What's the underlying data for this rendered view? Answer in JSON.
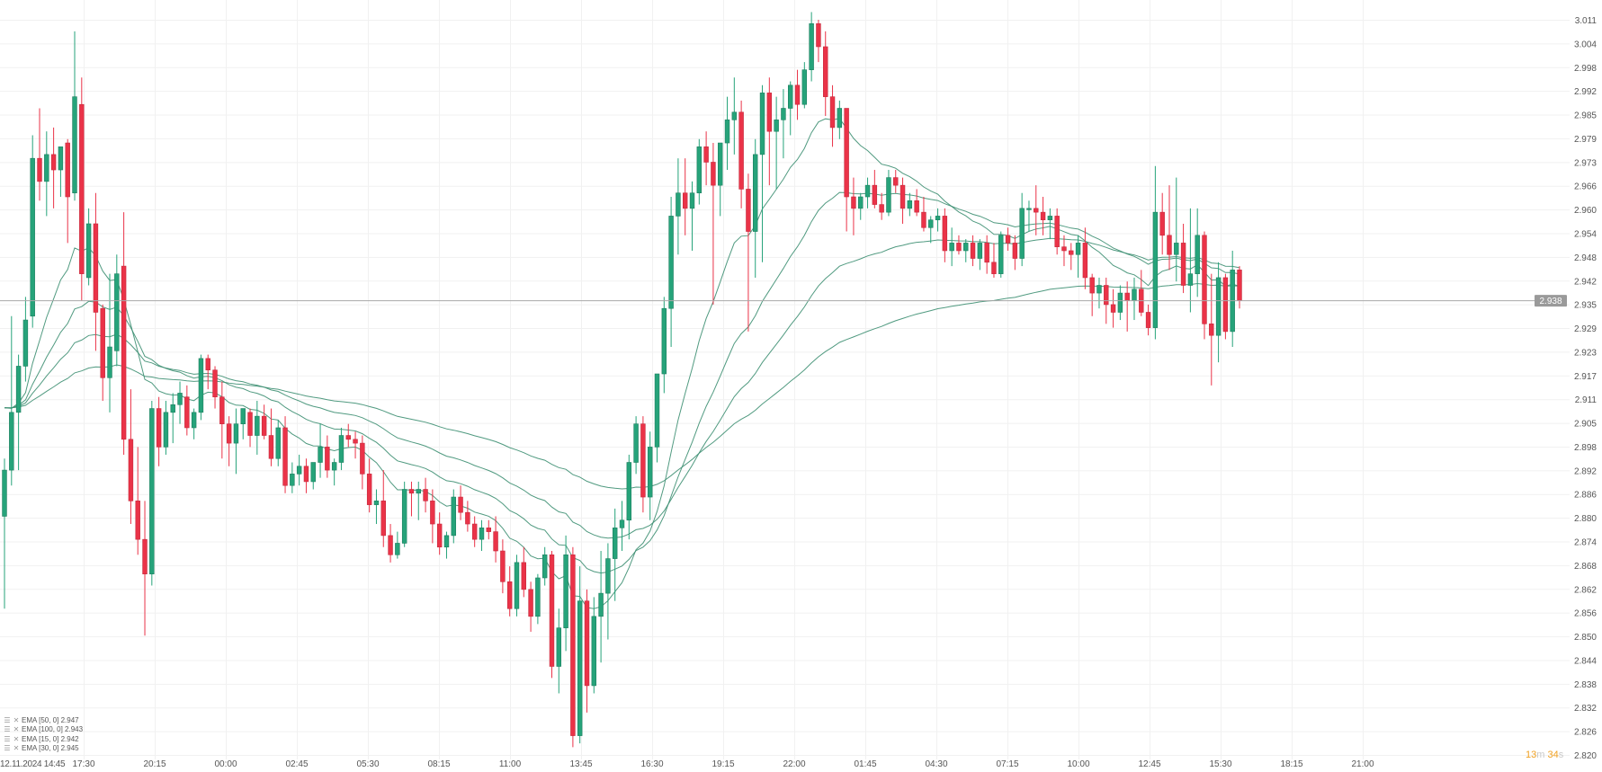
{
  "chart_data": {
    "type": "candlestick",
    "title": "",
    "xlabel": "",
    "ylabel": "",
    "ylim": [
      2.82,
      3.011
    ],
    "grid": true,
    "y_ticks": [
      "3.011",
      "3.004",
      "2.998",
      "2.992",
      "2.985",
      "2.979",
      "2.973",
      "2.966",
      "2.960",
      "2.954",
      "2.948",
      "2.942",
      "2.935",
      "2.929",
      "2.923",
      "2.917",
      "2.911",
      "2.905",
      "2.898",
      "2.892",
      "2.886",
      "2.880",
      "2.874",
      "2.868",
      "2.862",
      "2.856",
      "2.850",
      "2.844",
      "2.838",
      "2.832",
      "2.826",
      "2.820"
    ],
    "x_ticks": [
      "12.11.2024  14:45",
      "17:30",
      "20:15",
      "00:00",
      "02:45",
      "05:30",
      "08:15",
      "11:00",
      "13:45",
      "16:30",
      "19:15",
      "22:00",
      "01:45",
      "04:30",
      "07:15",
      "10:00",
      "12:45",
      "15:30",
      "18:15",
      "21:00"
    ],
    "current_price": 2.938,
    "current_price_label": "2.938",
    "candle_interval": "15m",
    "colors": {
      "up": "#26a37a",
      "down": "#ea3348",
      "ema": "#3d8f72",
      "price_line": "#a8a8a8"
    },
    "legend": [
      {
        "label": "EMA [50, 0] 2.947",
        "period": 50
      },
      {
        "label": "EMA [100, 0] 2.943",
        "period": 100
      },
      {
        "label": "EMA [15, 0] 2.942",
        "period": 15
      },
      {
        "label": "EMA [30, 0] 2.945",
        "period": 30
      }
    ],
    "ohlc": [
      [
        2.882,
        2.897,
        2.858,
        2.894
      ],
      [
        2.894,
        2.934,
        2.89,
        2.909
      ],
      [
        2.909,
        2.924,
        2.894,
        2.921
      ],
      [
        2.921,
        2.939,
        2.917,
        2.933
      ],
      [
        2.934,
        2.981,
        2.931,
        2.975
      ],
      [
        2.975,
        2.988,
        2.964,
        2.969
      ],
      [
        2.969,
        2.982,
        2.96,
        2.976
      ],
      [
        2.976,
        2.983,
        2.962,
        2.972
      ],
      [
        2.972,
        2.978,
        2.965,
        2.978
      ],
      [
        2.979,
        2.98,
        2.953,
        2.965
      ],
      [
        2.966,
        3.008,
        2.964,
        2.991
      ],
      [
        2.989,
        2.996,
        2.938,
        2.945
      ],
      [
        2.944,
        2.962,
        2.942,
        2.958
      ],
      [
        2.958,
        2.966,
        2.925,
        2.935
      ],
      [
        2.936,
        2.937,
        2.912,
        2.918
      ],
      [
        2.918,
        2.945,
        2.909,
        2.926
      ],
      [
        2.925,
        2.95,
        2.921,
        2.945
      ],
      [
        2.947,
        2.961,
        2.898,
        2.902
      ],
      [
        2.902,
        2.915,
        2.88,
        2.886
      ],
      [
        2.886,
        2.9,
        2.872,
        2.876
      ],
      [
        2.876,
        2.886,
        2.851,
        2.867
      ],
      [
        2.867,
        2.912,
        2.864,
        2.91
      ],
      [
        2.91,
        2.913,
        2.895,
        2.9
      ],
      [
        2.9,
        2.912,
        2.898,
        2.909
      ],
      [
        2.909,
        2.914,
        2.901,
        2.911
      ],
      [
        2.911,
        2.917,
        2.906,
        2.914
      ],
      [
        2.913,
        2.916,
        2.903,
        2.905
      ],
      [
        2.905,
        2.91,
        2.902,
        2.909
      ],
      [
        2.909,
        2.924,
        2.907,
        2.923
      ],
      [
        2.923,
        2.924,
        2.915,
        2.92
      ],
      [
        2.92,
        2.921,
        2.91,
        2.913
      ],
      [
        2.913,
        2.917,
        2.897,
        2.906
      ],
      [
        2.906,
        2.908,
        2.895,
        2.901
      ],
      [
        2.901,
        2.91,
        2.893,
        2.906
      ],
      [
        2.906,
        2.91,
        2.902,
        2.91
      ],
      [
        2.909,
        2.91,
        2.9,
        2.903
      ],
      [
        2.903,
        2.912,
        2.898,
        2.908
      ],
      [
        2.908,
        2.911,
        2.902,
        2.903
      ],
      [
        2.903,
        2.91,
        2.895,
        2.897
      ],
      [
        2.897,
        2.907,
        2.895,
        2.905
      ],
      [
        2.905,
        2.908,
        2.888,
        2.89
      ],
      [
        2.89,
        2.896,
        2.888,
        2.893
      ],
      [
        2.893,
        2.898,
        2.89,
        2.895
      ],
      [
        2.895,
        2.897,
        2.888,
        2.891
      ],
      [
        2.891,
        2.896,
        2.889,
        2.896
      ],
      [
        2.896,
        2.906,
        2.892,
        2.9
      ],
      [
        2.9,
        2.903,
        2.892,
        2.894
      ],
      [
        2.894,
        2.897,
        2.89,
        2.896
      ],
      [
        2.896,
        2.905,
        2.894,
        2.903
      ],
      [
        2.903,
        2.906,
        2.9,
        2.902
      ],
      [
        2.902,
        2.904,
        2.897,
        2.901
      ],
      [
        2.901,
        2.903,
        2.889,
        2.893
      ],
      [
        2.893,
        2.897,
        2.883,
        2.885
      ],
      [
        2.885,
        2.889,
        2.88,
        2.886
      ],
      [
        2.886,
        2.894,
        2.874,
        2.877
      ],
      [
        2.877,
        2.88,
        2.87,
        2.872
      ],
      [
        2.872,
        2.878,
        2.871,
        2.875
      ],
      [
        2.875,
        2.891,
        2.874,
        2.889
      ],
      [
        2.889,
        2.891,
        2.882,
        2.888
      ],
      [
        2.888,
        2.891,
        2.881,
        2.889
      ],
      [
        2.889,
        2.892,
        2.883,
        2.886
      ],
      [
        2.886,
        2.889,
        2.875,
        2.88
      ],
      [
        2.88,
        2.883,
        2.872,
        2.874
      ],
      [
        2.874,
        2.878,
        2.871,
        2.877
      ],
      [
        2.877,
        2.889,
        2.875,
        2.887
      ],
      [
        2.887,
        2.89,
        2.881,
        2.883
      ],
      [
        2.883,
        2.886,
        2.878,
        2.88
      ],
      [
        2.88,
        2.882,
        2.874,
        2.876
      ],
      [
        2.876,
        2.881,
        2.873,
        2.879
      ],
      [
        2.879,
        2.881,
        2.876,
        2.878
      ],
      [
        2.878,
        2.882,
        2.87,
        2.873
      ],
      [
        2.873,
        2.876,
        2.862,
        2.865
      ],
      [
        2.865,
        2.869,
        2.856,
        2.858
      ],
      [
        2.858,
        2.872,
        2.856,
        2.87
      ],
      [
        2.87,
        2.874,
        2.861,
        2.863
      ],
      [
        2.863,
        2.865,
        2.852,
        2.856
      ],
      [
        2.856,
        2.867,
        2.854,
        2.866
      ],
      [
        2.866,
        2.874,
        2.864,
        2.872
      ],
      [
        2.872,
        2.873,
        2.84,
        2.843
      ],
      [
        2.843,
        2.858,
        2.836,
        2.853
      ],
      [
        2.853,
        2.877,
        2.847,
        2.872
      ],
      [
        2.872,
        2.874,
        2.822,
        2.825
      ],
      [
        2.825,
        2.869,
        2.823,
        2.86
      ],
      [
        2.86,
        2.863,
        2.831,
        2.838
      ],
      [
        2.838,
        2.861,
        2.836,
        2.856
      ],
      [
        2.856,
        2.873,
        2.844,
        2.862
      ],
      [
        2.862,
        2.875,
        2.85,
        2.871
      ],
      [
        2.871,
        2.884,
        2.86,
        2.879
      ],
      [
        2.879,
        2.886,
        2.873,
        2.881
      ],
      [
        2.881,
        2.898,
        2.876,
        2.896
      ],
      [
        2.896,
        2.908,
        2.893,
        2.906
      ],
      [
        2.906,
        2.908,
        2.883,
        2.887
      ],
      [
        2.887,
        2.904,
        2.881,
        2.9
      ],
      [
        2.9,
        2.919,
        2.896,
        2.919
      ],
      [
        2.919,
        2.939,
        2.914,
        2.936
      ],
      [
        2.936,
        2.965,
        2.926,
        2.96
      ],
      [
        2.96,
        2.975,
        2.95,
        2.966
      ],
      [
        2.966,
        2.975,
        2.955,
        2.962
      ],
      [
        2.962,
        2.969,
        2.951,
        2.966
      ],
      [
        2.966,
        2.98,
        2.963,
        2.978
      ],
      [
        2.978,
        2.982,
        2.968,
        2.974
      ],
      [
        2.974,
        2.979,
        2.937,
        2.968
      ],
      [
        2.968,
        2.979,
        2.96,
        2.979
      ],
      [
        2.979,
        2.991,
        2.972,
        2.985
      ],
      [
        2.985,
        2.996,
        2.976,
        2.987
      ],
      [
        2.987,
        2.99,
        2.962,
        2.967
      ],
      [
        2.967,
        2.971,
        2.93,
        2.956
      ],
      [
        2.956,
        2.98,
        2.944,
        2.976
      ],
      [
        2.976,
        2.994,
        2.948,
        2.992
      ],
      [
        2.992,
        2.996,
        2.968,
        2.982
      ],
      [
        2.982,
        2.991,
        2.967,
        2.985
      ],
      [
        2.985,
        2.993,
        2.975,
        2.988
      ],
      [
        2.988,
        2.995,
        2.981,
        2.994
      ],
      [
        2.994,
        2.998,
        2.985,
        2.989
      ],
      [
        2.989,
        3.0,
        2.988,
        2.998
      ],
      [
        2.998,
        3.013,
        2.995,
        3.01
      ],
      [
        3.01,
        3.011,
        3.0,
        3.004
      ],
      [
        3.004,
        3.008,
        2.986,
        2.991
      ],
      [
        2.991,
        2.994,
        2.978,
        2.983
      ],
      [
        2.983,
        2.99,
        2.98,
        2.988
      ],
      [
        2.988,
        2.988,
        2.956,
        2.965
      ],
      [
        2.965,
        2.97,
        2.955,
        2.962
      ],
      [
        2.962,
        2.966,
        2.959,
        2.965
      ],
      [
        2.965,
        2.97,
        2.962,
        2.968
      ],
      [
        2.968,
        2.972,
        2.962,
        2.963
      ],
      [
        2.963,
        2.966,
        2.959,
        2.961
      ],
      [
        2.961,
        2.972,
        2.96,
        2.97
      ],
      [
        2.97,
        2.972,
        2.966,
        2.968
      ],
      [
        2.968,
        2.97,
        2.958,
        2.962
      ],
      [
        2.962,
        2.966,
        2.96,
        2.964
      ],
      [
        2.964,
        2.967,
        2.96,
        2.961
      ],
      [
        2.961,
        2.965,
        2.956,
        2.957
      ],
      [
        2.957,
        2.96,
        2.953,
        2.959
      ],
      [
        2.959,
        2.962,
        2.956,
        2.96
      ],
      [
        2.96,
        2.962,
        2.948,
        2.951
      ],
      [
        2.951,
        2.957,
        2.947,
        2.953
      ],
      [
        2.953,
        2.955,
        2.95,
        2.951
      ],
      [
        2.951,
        2.954,
        2.948,
        2.953
      ],
      [
        2.953,
        2.955,
        2.947,
        2.949
      ],
      [
        2.949,
        2.954,
        2.946,
        2.953
      ],
      [
        2.953,
        2.955,
        2.945,
        2.948
      ],
      [
        2.948,
        2.953,
        2.944,
        2.945
      ],
      [
        2.945,
        2.956,
        2.944,
        2.955
      ],
      [
        2.955,
        2.957,
        2.951,
        2.953
      ],
      [
        2.953,
        2.955,
        2.946,
        2.949
      ],
      [
        2.949,
        2.966,
        2.947,
        2.962
      ],
      [
        2.962,
        2.964,
        2.956,
        2.962
      ],
      [
        2.962,
        2.968,
        2.955,
        2.961
      ],
      [
        2.961,
        2.965,
        2.955,
        2.959
      ],
      [
        2.959,
        2.962,
        2.954,
        2.96
      ],
      [
        2.96,
        2.962,
        2.95,
        2.952
      ],
      [
        2.952,
        2.955,
        2.947,
        2.951
      ],
      [
        2.951,
        2.953,
        2.946,
        2.95
      ],
      [
        2.95,
        2.955,
        2.944,
        2.953
      ],
      [
        2.953,
        2.957,
        2.941,
        2.944
      ],
      [
        2.944,
        2.945,
        2.934,
        2.94
      ],
      [
        2.94,
        2.944,
        2.936,
        2.942
      ],
      [
        2.942,
        2.944,
        2.932,
        2.937
      ],
      [
        2.937,
        2.941,
        2.931,
        2.935
      ],
      [
        2.935,
        2.942,
        2.933,
        2.94
      ],
      [
        2.94,
        2.943,
        2.93,
        2.938
      ],
      [
        2.938,
        2.944,
        2.933,
        2.941
      ],
      [
        2.941,
        2.946,
        2.934,
        2.935
      ],
      [
        2.935,
        2.937,
        2.929,
        2.931
      ],
      [
        2.931,
        2.973,
        2.928,
        2.961
      ],
      [
        2.961,
        2.966,
        2.95,
        2.955
      ],
      [
        2.955,
        2.968,
        2.946,
        2.95
      ],
      [
        2.95,
        2.97,
        2.943,
        2.953
      ],
      [
        2.953,
        2.958,
        2.94,
        2.942
      ],
      [
        2.942,
        2.962,
        2.935,
        2.945
      ],
      [
        2.945,
        2.962,
        2.939,
        2.955
      ],
      [
        2.955,
        2.956,
        2.928,
        2.932
      ],
      [
        2.932,
        2.945,
        2.916,
        2.929
      ],
      [
        2.929,
        2.948,
        2.922,
        2.944
      ],
      [
        2.944,
        2.945,
        2.928,
        2.93
      ],
      [
        2.93,
        2.951,
        2.926,
        2.946
      ],
      [
        2.946,
        2.947,
        2.936,
        2.938
      ]
    ]
  },
  "timer": {
    "minutes": "13",
    "minutes_unit": "m",
    "seconds": "34",
    "seconds_unit": "s"
  }
}
